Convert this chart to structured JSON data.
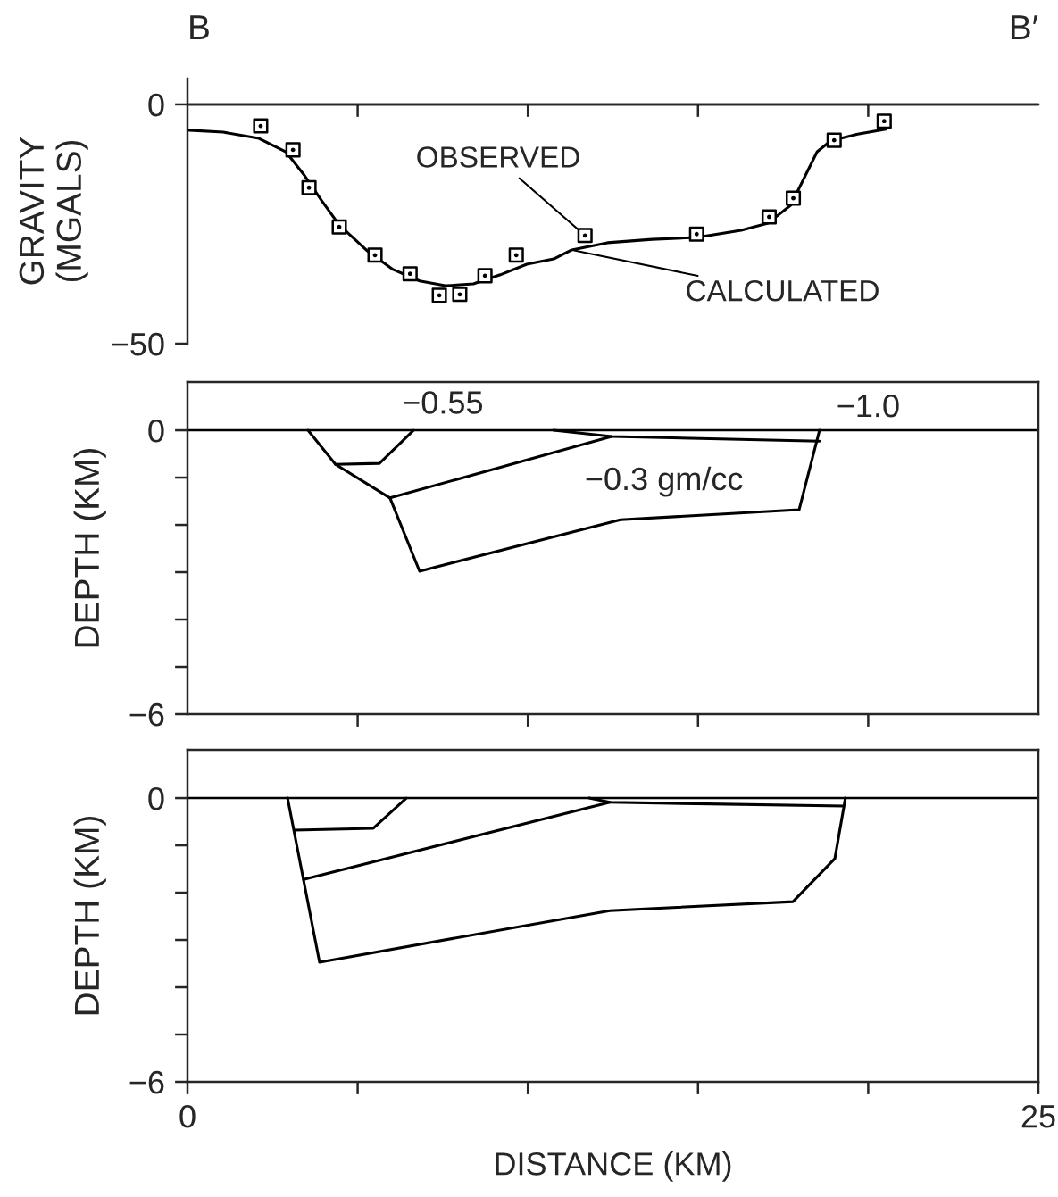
{
  "chart_data": [
    {
      "type": "line",
      "ylabel": "GRAVITY\n(MGALS)",
      "xlim": [
        0,
        25
      ],
      "ylim": [
        -50,
        5.4
      ],
      "xticks": [
        {
          "value": 5,
          "label": null
        },
        {
          "value": 10,
          "label": null
        },
        {
          "value": 15,
          "label": null
        },
        {
          "value": 20,
          "label": null
        }
      ],
      "yticks": [
        -50,
        0
      ],
      "tick_labels": "y",
      "grid": false,
      "legend": false,
      "ref_lines": [
        {
          "axis": "y",
          "value": 0,
          "color": "#000000"
        }
      ],
      "annotations": [
        "B",
        "B′"
      ],
      "series": [
        {
          "name": "CALCULATED",
          "type": "line",
          "color": "#000000",
          "line_style": "solid",
          "marker": "none",
          "x": [
            0.05,
            1.05,
            2.1,
            2.89,
            3.41,
            3.94,
            4.46,
            5.25,
            6.04,
            6.82,
            7.61,
            8.4,
            9.19,
            9.97,
            10.76,
            11.29,
            12.34,
            13.65,
            14.96,
            16.27,
            17.06,
            17.72,
            18.11,
            18.5,
            18.9,
            19.69,
            20.52
          ],
          "values": [
            -5.4,
            -5.8,
            -7.1,
            -9.9,
            -14.6,
            -20.1,
            -25.2,
            -30.4,
            -34.5,
            -36.9,
            -37.9,
            -37.5,
            -35.6,
            -33.4,
            -32.3,
            -30.4,
            -28.9,
            -28.2,
            -27.8,
            -26.3,
            -24.8,
            -21.1,
            -15.5,
            -9.9,
            -7.6,
            -6.2,
            -5.2
          ]
        },
        {
          "name": "OBSERVED",
          "type": "scatter",
          "color": "#000000",
          "marker": "square",
          "x": [
            2.15,
            3.1,
            3.57,
            4.46,
            5.51,
            6.54,
            7.4,
            8.0,
            8.74,
            9.66,
            11.68,
            14.96,
            17.09,
            17.8,
            19.0,
            20.47
          ],
          "values": [
            -4.5,
            -9.5,
            -17.4,
            -25.6,
            -31.5,
            -35.4,
            -39.9,
            -39.7,
            -35.8,
            -31.5,
            -27.4,
            -27.1,
            -23.5,
            -19.6,
            -7.5,
            -3.5
          ]
        }
      ]
    },
    {
      "type": "line",
      "ylabel": "DEPTH (KM)",
      "xlim": [
        0,
        25
      ],
      "ylim": [
        -6,
        1.02
      ],
      "xticks": [
        {
          "value": 5,
          "label": null
        },
        {
          "value": 10,
          "label": null
        },
        {
          "value": 15,
          "label": null
        },
        {
          "value": 20,
          "label": null
        }
      ],
      "yticks": [
        -6,
        {
          "value": -5,
          "label": null
        },
        {
          "value": -4,
          "label": null
        },
        {
          "value": -3,
          "label": null
        },
        {
          "value": -2,
          "label": null
        },
        {
          "value": -1,
          "label": null
        },
        0
      ],
      "tick_labels": "y",
      "grid": false,
      "legend": false,
      "ref_lines": [
        {
          "axis": "y",
          "value": 0,
          "color": "#000000"
        }
      ],
      "annotations": [
        "−0.55",
        "−1.0",
        "−0.3 gm/cc"
      ],
      "series": [
        {
          "color": "#000000",
          "x": [
            3.54,
            4.35,
            5.64,
            6.64
          ],
          "values": [
            0,
            -0.72,
            -0.7,
            0
          ]
        },
        {
          "color": "#000000",
          "x": [
            4.35,
            5.95,
            6.82,
            12.72,
            17.97,
            18.57
          ],
          "values": [
            -0.72,
            -1.43,
            -2.98,
            -1.89,
            -1.68,
            0
          ]
        },
        {
          "color": "#000000",
          "x": [
            5.95,
            12.46
          ],
          "values": [
            -1.43,
            -0.13
          ]
        },
        {
          "color": "#000000",
          "x": [
            10.76,
            12.46,
            18.57
          ],
          "values": [
            0,
            -0.13,
            -0.23
          ]
        }
      ]
    },
    {
      "type": "line",
      "ylabel": "DEPTH (KM)",
      "xlabel": "DISTANCE (KM)",
      "xlim": [
        0,
        25
      ],
      "ylim": [
        -6,
        1.02
      ],
      "xticks": [
        0,
        {
          "value": 5,
          "label": null
        },
        {
          "value": 10,
          "label": null
        },
        {
          "value": 15,
          "label": null
        },
        {
          "value": 20,
          "label": null
        },
        25
      ],
      "yticks": [
        -6,
        {
          "value": -5,
          "label": null
        },
        {
          "value": -4,
          "label": null
        },
        {
          "value": -3,
          "label": null
        },
        {
          "value": -2,
          "label": null
        },
        {
          "value": -1,
          "label": null
        },
        0
      ],
      "grid": false,
      "legend": false,
      "ref_lines": [
        {
          "axis": "y",
          "value": 0,
          "color": "#000000"
        }
      ],
      "series": [
        {
          "color": "#000000",
          "x": [
            2.94,
            3.88,
            12.41,
            17.79,
            19.02,
            19.33
          ],
          "values": [
            0,
            -3.47,
            -2.38,
            -2.19,
            -1.28,
            0
          ]
        },
        {
          "color": "#000000",
          "x": [
            3.15,
            5.46,
            6.43
          ],
          "values": [
            -0.68,
            -0.64,
            0
          ]
        },
        {
          "color": "#000000",
          "x": [
            3.41,
            12.41
          ],
          "values": [
            -1.72,
            -0.09
          ]
        },
        {
          "color": "#000000",
          "x": [
            11.8,
            12.41,
            19.28
          ],
          "values": [
            0,
            -0.09,
            -0.17
          ]
        }
      ]
    }
  ]
}
